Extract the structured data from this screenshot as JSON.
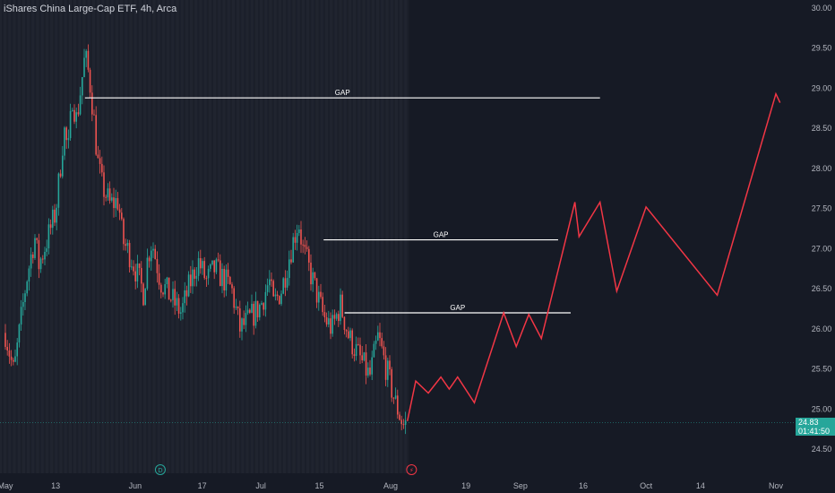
{
  "header": {
    "title": "iShares China Large-Cap ETF, 4h, Arca"
  },
  "last_price": {
    "value": "24.83",
    "countdown": "01:41:50",
    "color": "#26a69a"
  },
  "colors": {
    "background": "#161a25",
    "session_band": "#20242f",
    "candle_up": "#26a69a",
    "candle_down": "#ef5350",
    "projection": "#f23645",
    "gap_line": "#ffffff",
    "axis_text": "#b2b5be"
  },
  "markers": [
    {
      "icon": "dividend-icon",
      "glyph": "D",
      "date": "2024-06-07"
    },
    {
      "icon": "earnings-icon",
      "glyph": "⚡",
      "date": "2024-08-06"
    }
  ],
  "chart_data": {
    "type": "line",
    "title": "iShares China Large-Cap ETF, 4h, Arca",
    "xlabel": "",
    "ylabel": "",
    "ylim": [
      24.2,
      30.1
    ],
    "y_ticks": [
      "30.00",
      "29.50",
      "29.00",
      "28.50",
      "28.00",
      "27.50",
      "27.00",
      "26.50",
      "26.00",
      "25.50",
      "25.00",
      "24.50"
    ],
    "x_ticks": [
      {
        "label": "May",
        "date": "2024-05-01"
      },
      {
        "label": "13",
        "date": "2024-05-13"
      },
      {
        "label": "Jun",
        "date": "2024-06-01"
      },
      {
        "label": "17",
        "date": "2024-06-17"
      },
      {
        "label": "Jul",
        "date": "2024-07-01"
      },
      {
        "label": "15",
        "date": "2024-07-15"
      },
      {
        "label": "Aug",
        "date": "2024-08-01"
      },
      {
        "label": "19",
        "date": "2024-08-19"
      },
      {
        "label": "Sep",
        "date": "2024-09-01"
      },
      {
        "label": "16",
        "date": "2024-09-16"
      },
      {
        "label": "Oct",
        "date": "2024-10-01"
      },
      {
        "label": "14",
        "date": "2024-10-14"
      },
      {
        "label": "Nov",
        "date": "2024-11-01"
      }
    ],
    "price_path": [
      [
        "2024-05-01",
        25.95
      ],
      [
        "2024-05-03",
        25.45
      ],
      [
        "2024-05-06",
        26.6
      ],
      [
        "2024-05-08",
        27.15
      ],
      [
        "2024-05-09",
        26.8
      ],
      [
        "2024-05-10",
        26.95
      ],
      [
        "2024-05-13",
        27.45
      ],
      [
        "2024-05-14",
        27.95
      ],
      [
        "2024-05-15",
        28.5
      ],
      [
        "2024-05-16",
        28.2
      ],
      [
        "2024-05-17",
        28.9
      ],
      [
        "2024-05-18",
        28.6
      ],
      [
        "2024-05-20",
        29.4
      ],
      [
        "2024-05-21",
        29.15
      ],
      [
        "2024-05-22",
        28.7
      ],
      [
        "2024-05-23",
        28.1
      ],
      [
        "2024-05-24",
        27.8
      ],
      [
        "2024-05-26",
        27.55
      ],
      [
        "2024-05-28",
        27.6
      ],
      [
        "2024-05-29",
        27.1
      ],
      [
        "2024-05-31",
        26.9
      ],
      [
        "2024-06-03",
        26.45
      ],
      [
        "2024-06-04",
        26.9
      ],
      [
        "2024-06-05",
        27.1
      ],
      [
        "2024-06-06",
        26.85
      ],
      [
        "2024-06-07",
        26.6
      ],
      [
        "2024-06-10",
        26.35
      ],
      [
        "2024-06-12",
        26.2
      ],
      [
        "2024-06-14",
        26.55
      ],
      [
        "2024-06-16",
        26.85
      ],
      [
        "2024-06-18",
        26.6
      ],
      [
        "2024-06-20",
        26.75
      ],
      [
        "2024-06-24",
        26.5
      ],
      [
        "2024-06-26",
        26.0
      ],
      [
        "2024-06-28",
        26.1
      ],
      [
        "2024-07-01",
        26.3
      ],
      [
        "2024-07-03",
        26.6
      ],
      [
        "2024-07-04",
        26.3
      ],
      [
        "2024-07-06",
        26.5
      ],
      [
        "2024-07-08",
        26.95
      ],
      [
        "2024-07-10",
        27.35
      ],
      [
        "2024-07-11",
        27.0
      ],
      [
        "2024-07-14",
        26.5
      ],
      [
        "2024-07-16",
        26.15
      ],
      [
        "2024-07-18",
        26.0
      ],
      [
        "2024-07-20",
        26.3
      ],
      [
        "2024-07-22",
        25.9
      ],
      [
        "2024-07-25",
        25.6
      ],
      [
        "2024-07-27",
        25.4
      ],
      [
        "2024-07-29",
        25.9
      ],
      [
        "2024-07-31",
        25.5
      ],
      [
        "2024-08-02",
        25.1
      ],
      [
        "2024-08-04",
        24.8
      ],
      [
        "2024-08-05",
        24.83
      ]
    ],
    "projection": [
      [
        "2024-08-05",
        24.85
      ],
      [
        "2024-08-07",
        25.35
      ],
      [
        "2024-08-10",
        25.2
      ],
      [
        "2024-08-13",
        25.4
      ],
      [
        "2024-08-15",
        25.25
      ],
      [
        "2024-08-17",
        25.4
      ],
      [
        "2024-08-21",
        25.08
      ],
      [
        "2024-08-28",
        26.2
      ],
      [
        "2024-08-31",
        25.78
      ],
      [
        "2024-09-03",
        26.18
      ],
      [
        "2024-09-06",
        25.88
      ],
      [
        "2024-09-14",
        27.58
      ],
      [
        "2024-09-15",
        27.15
      ],
      [
        "2024-09-20",
        27.58
      ],
      [
        "2024-09-24",
        26.47
      ],
      [
        "2024-10-01",
        27.52
      ],
      [
        "2024-10-18",
        26.42
      ],
      [
        "2024-11-01",
        28.93
      ],
      [
        "2024-11-02",
        28.82
      ]
    ],
    "gaps": [
      {
        "label": "GAP",
        "price": 28.88,
        "from": "2024-05-20",
        "to": "2024-09-20"
      },
      {
        "label": "GAP",
        "price": 27.11,
        "from": "2024-07-16",
        "to": "2024-09-10"
      },
      {
        "label": "GAP",
        "price": 26.2,
        "from": "2024-07-21",
        "to": "2024-09-13"
      }
    ],
    "grid": false,
    "legend": "none"
  }
}
